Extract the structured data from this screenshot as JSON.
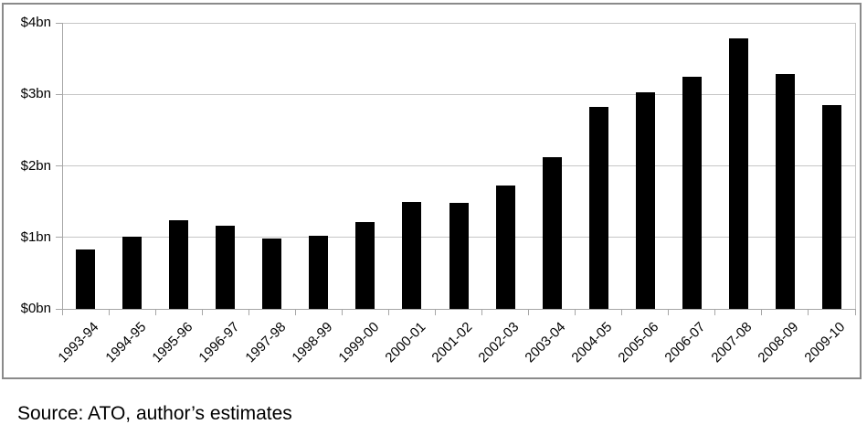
{
  "chart_data": {
    "type": "bar",
    "title": "",
    "categories": [
      "1993-94",
      "1994-95",
      "1995-96",
      "1996-97",
      "1997-98",
      "1998-99",
      "1999-00",
      "2000-01",
      "2001-02",
      "2002-03",
      "2003-04",
      "2004-05",
      "2005-06",
      "2006-07",
      "2007-08",
      "2008-09",
      "2009-10"
    ],
    "values": [
      0.83,
      1.01,
      1.24,
      1.16,
      0.99,
      1.02,
      1.21,
      1.49,
      1.48,
      1.73,
      2.12,
      2.82,
      3.03,
      3.24,
      3.78,
      3.28,
      2.85
    ],
    "unit": "$bn",
    "xlabel": "",
    "ylabel": "",
    "ylim": [
      0,
      4
    ],
    "yticks": [
      {
        "value": 0,
        "label": "$0bn"
      },
      {
        "value": 1,
        "label": "$1bn"
      },
      {
        "value": 2,
        "label": "$2bn"
      },
      {
        "value": 3,
        "label": "$3bn"
      },
      {
        "value": 4,
        "label": "$4bn"
      }
    ],
    "grid": true,
    "legend": "none",
    "colors": {
      "bar": "#000000",
      "gridline": "#c6c6c6",
      "axis": "#a6a6a6",
      "frame": "#8a8a8a",
      "plot_border": "#c6c6c6",
      "background": "#ffffff",
      "text": "#000000"
    }
  },
  "source": {
    "text": "Source: ATO, author’s estimates"
  }
}
